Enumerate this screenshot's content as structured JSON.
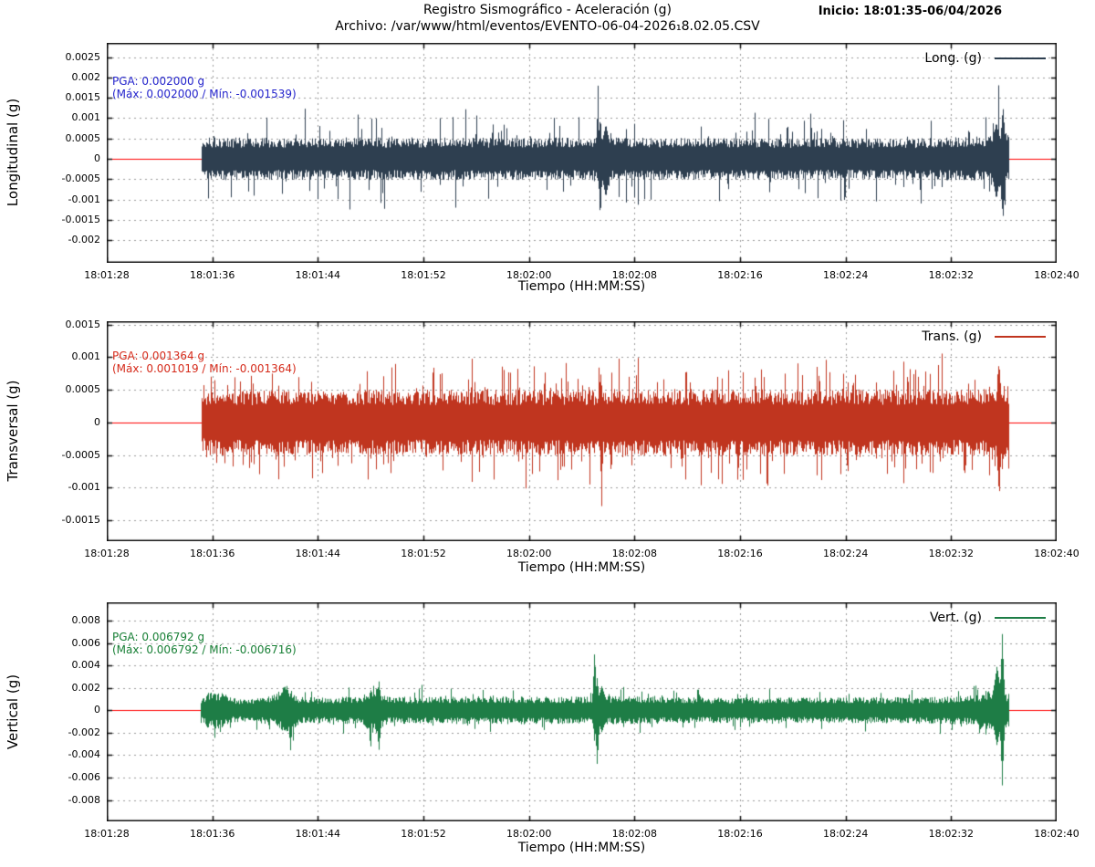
{
  "header": {
    "title_line1": "Registro Sismográfico - Aceleración (g)",
    "title_line2": "Archivo: /var/www/html/eventos/EVENTO-06-04-2026₁8.02.05.CSV",
    "inicio_label": "Inicio: 18:01:35-06/04/2026"
  },
  "colors": {
    "grid": "#9a9a9a",
    "border": "#111111",
    "zero_line": "#ff0000",
    "longitudinal_trace": "#2e3f50",
    "longitudinal_text": "#2424cc",
    "transversal_trace": "#c0351f",
    "transversal_text": "#d52a1a",
    "vertical_trace": "#1e7d46",
    "vertical_text": "#177f35"
  },
  "time_axis": {
    "xlabel": "Tiempo (HH:MM:SS)",
    "tick_seconds": [
      0,
      8,
      16,
      24,
      32,
      40,
      48,
      56,
      64,
      72
    ],
    "tick_labels": [
      "18:01:28",
      "18:01:36",
      "18:01:44",
      "18:01:52",
      "18:02:00",
      "18:02:08",
      "18:02:16",
      "18:02:24",
      "18:02:32",
      "18:02:40"
    ],
    "t_total_seconds": 72
  },
  "chart_data": [
    {
      "type": "line",
      "name": "longitudinal",
      "legend_label": "Long. (g)",
      "ylabel": "Longitudinal (g)",
      "xlabel": "Tiempo (HH:MM:SS)",
      "pga_label": "PGA: 0.002000 g",
      "minmax_label": "(Máx: 0.002000 / Mín: -0.001539)",
      "pga_g": 0.002,
      "max_g": 0.002,
      "min_g": -0.001539,
      "trace_color": "#2e3f50",
      "annotation_color": "#2424cc",
      "ylim": [
        -0.00256,
        0.00285
      ],
      "ytick_values": [
        0.0025,
        0.002,
        0.0015,
        0.001,
        0.0005,
        0,
        -0.0005,
        -0.001,
        -0.0015,
        -0.002
      ],
      "ytick_labels": [
        "0.0025",
        "0.002",
        "0.0015",
        "0.001",
        "0.0005",
        "0",
        "-0.0005",
        "-0.001",
        "-0.0015",
        "-0.002"
      ],
      "grid": true,
      "legend_position": "top-right",
      "waveform": {
        "seed": 11,
        "t_start": 7.2,
        "t_end": 68.3,
        "band": 0.0005,
        "tail_prob": 0.08,
        "tail_max": 2.6,
        "envelope": [
          [
            7.2,
            0.75
          ],
          [
            7.6,
            1.0
          ],
          [
            20,
            1.0
          ],
          [
            37,
            1.0
          ],
          [
            60,
            0.95
          ],
          [
            66.5,
            1.05
          ],
          [
            67.5,
            1.45
          ],
          [
            68.3,
            1.15
          ]
        ],
        "spikes": [
          {
            "t": 37.2,
            "up": 0.002,
            "down": -0.0006,
            "w": 0.18
          },
          {
            "t": 37.38,
            "up": 0.0011,
            "down": -0.00154,
            "w": 0.3
          },
          {
            "t": 37.8,
            "up": 0.00085,
            "down": -0.00095,
            "w": 0.9
          },
          {
            "t": 67.4,
            "up": 0.0009,
            "down": -0.001,
            "w": 0.9
          },
          {
            "t": 67.9,
            "up": 0.00132,
            "down": -0.00152,
            "w": 0.45
          }
        ]
      }
    },
    {
      "type": "line",
      "name": "transversal",
      "legend_label": "Trans. (g)",
      "ylabel": "Transversal (g)",
      "xlabel": "Tiempo (HH:MM:SS)",
      "pga_label": "PGA: 0.001364 g",
      "minmax_label": "(Máx: 0.001019 / Mín: -0.001364)",
      "pga_g": 0.001364,
      "max_g": 0.001019,
      "min_g": -0.001364,
      "trace_color": "#c0351f",
      "annotation_color": "#d52a1a",
      "ylim": [
        -0.00182,
        0.00155
      ],
      "ytick_values": [
        0.0015,
        0.001,
        0.0005,
        0,
        -0.0005,
        -0.001,
        -0.0015
      ],
      "ytick_labels": [
        "0.0015",
        "0.001",
        "0.0005",
        "0",
        "-0.0005",
        "-0.001",
        "-0.0015"
      ],
      "grid": true,
      "legend_position": "top-right",
      "waveform": {
        "seed": 22,
        "t_start": 7.2,
        "t_end": 68.3,
        "band": 0.00048,
        "tail_prob": 0.13,
        "tail_max": 2.1,
        "envelope": [
          [
            7.2,
            0.9
          ],
          [
            8,
            1.0
          ],
          [
            36,
            1.0
          ],
          [
            40,
            1.02
          ],
          [
            66,
            1.0
          ],
          [
            67.5,
            1.2
          ],
          [
            68.3,
            1.05
          ]
        ],
        "spikes": [
          {
            "t": 37.3,
            "up": 0.00102,
            "down": -0.00045,
            "w": 0.2
          },
          {
            "t": 37.48,
            "up": 0.0006,
            "down": -0.00136,
            "w": 0.22
          },
          {
            "t": 67.6,
            "up": 0.00095,
            "down": -0.00108,
            "w": 0.5
          }
        ]
      }
    },
    {
      "type": "line",
      "name": "vertical",
      "legend_label": "Vert. (g)",
      "ylabel": "Vertical (g)",
      "xlabel": "Tiempo (HH:MM:SS)",
      "pga_label": "PGA: 0.006792 g",
      "minmax_label": "(Máx: 0.006792 / Mín: -0.006716)",
      "pga_g": 0.006792,
      "max_g": 0.006792,
      "min_g": -0.006716,
      "trace_color": "#1e7d46",
      "annotation_color": "#177f35",
      "ylim": [
        -0.0099,
        0.00962
      ],
      "ytick_values": [
        0.008,
        0.006,
        0.004,
        0.002,
        0,
        -0.002,
        -0.004,
        -0.006,
        -0.008
      ],
      "ytick_labels": [
        "0.008",
        "0.006",
        "0.004",
        "0.002",
        "0",
        "-0.002",
        "-0.004",
        "-0.006",
        "-0.008"
      ],
      "grid": true,
      "legend_position": "top-right",
      "waveform": {
        "seed": 33,
        "t_start": 7.1,
        "t_end": 68.3,
        "band": 0.00135,
        "tail_prob": 0.06,
        "tail_max": 1.9,
        "envelope": [
          [
            7.1,
            0.55
          ],
          [
            7.6,
            1.15
          ],
          [
            8.6,
            1.15
          ],
          [
            9.5,
            0.75
          ],
          [
            11.5,
            0.75
          ],
          [
            12.5,
            1.0
          ],
          [
            13.6,
            1.55
          ],
          [
            14.6,
            0.85
          ],
          [
            16.5,
            0.8
          ],
          [
            19.3,
            0.9
          ],
          [
            20.2,
            1.6
          ],
          [
            21.3,
            0.85
          ],
          [
            25,
            0.85
          ],
          [
            30,
            0.9
          ],
          [
            36.8,
            0.85
          ],
          [
            38,
            0.9
          ],
          [
            45,
            0.8
          ],
          [
            55,
            0.8
          ],
          [
            63,
            0.85
          ],
          [
            66,
            0.95
          ],
          [
            66.8,
            1.3
          ],
          [
            68.3,
            1.05
          ]
        ],
        "spikes": [
          {
            "t": 13.9,
            "up": 0.0013,
            "down": -0.0036,
            "w": 0.35
          },
          {
            "t": 20.6,
            "up": 0.0027,
            "down": -0.0037,
            "w": 0.4
          },
          {
            "t": 36.95,
            "up": 0.0055,
            "down": -0.003,
            "w": 0.3
          },
          {
            "t": 37.15,
            "up": 0.003,
            "down": -0.005,
            "w": 0.35
          },
          {
            "t": 37.5,
            "up": 0.0022,
            "down": -0.002,
            "w": 0.9
          },
          {
            "t": 67.45,
            "up": 0.004,
            "down": -0.0032,
            "w": 0.8
          },
          {
            "t": 67.85,
            "up": 0.0068,
            "down": -0.0067,
            "w": 0.35
          }
        ]
      }
    }
  ]
}
